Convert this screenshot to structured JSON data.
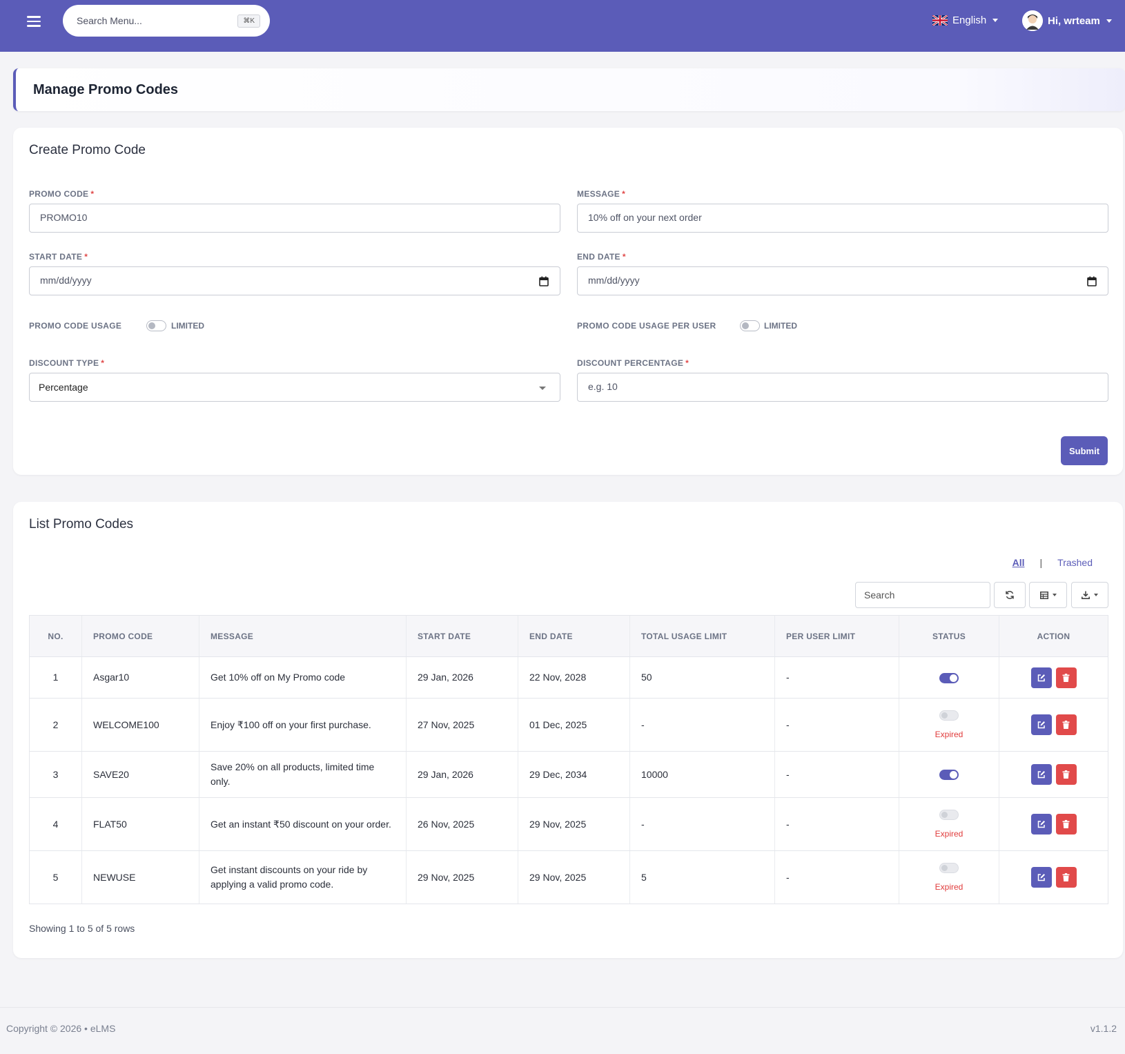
{
  "topbar": {
    "search_placeholder": "Search Menu...",
    "shortcut": "⌘K",
    "language": "English",
    "user_greeting": "Hi, wrteam"
  },
  "page": {
    "title": "Manage Promo Codes"
  },
  "create_form": {
    "title": "Create Promo Code",
    "promo_code": {
      "label": "PROMO CODE",
      "placeholder": "PROMO10"
    },
    "message": {
      "label": "MESSAGE",
      "placeholder": "10% off on your next order"
    },
    "start_date": {
      "label": "START DATE",
      "placeholder": "mm/dd/yyyy"
    },
    "end_date": {
      "label": "END DATE",
      "placeholder": "mm/dd/yyyy"
    },
    "usage": {
      "label": "PROMO CODE USAGE",
      "toggle_text": "LIMITED"
    },
    "usage_per_user": {
      "label": "PROMO CODE USAGE PER USER",
      "toggle_text": "LIMITED"
    },
    "discount_type": {
      "label": "DISCOUNT TYPE",
      "value": "Percentage"
    },
    "discount_percentage": {
      "label": "DISCOUNT PERCENTAGE",
      "placeholder": "e.g. 10"
    },
    "submit_label": "Submit"
  },
  "list": {
    "title": "List Promo Codes",
    "filter_all": "All",
    "filter_trashed": "Trashed",
    "search_placeholder": "Search",
    "columns": [
      "NO.",
      "PROMO CODE",
      "MESSAGE",
      "START DATE",
      "END DATE",
      "TOTAL USAGE LIMIT",
      "PER USER LIMIT",
      "STATUS",
      "ACTION"
    ],
    "rows": [
      {
        "no": "1",
        "code": "Asgar10",
        "message": "Get 10% off on My Promo code",
        "start": "29 Jan, 2026",
        "end": "22 Nov, 2028",
        "total_limit": "50",
        "per_user": "-",
        "status_on": true,
        "status_text": ""
      },
      {
        "no": "2",
        "code": "WELCOME100",
        "message": "Enjoy ₹100 off on your first purchase.",
        "start": "27 Nov, 2025",
        "end": "01 Dec, 2025",
        "total_limit": "-",
        "per_user": "-",
        "status_on": false,
        "status_text": "Expired"
      },
      {
        "no": "3",
        "code": "SAVE20",
        "message": "Save 20% on all products, limited time only.",
        "start": "29 Jan, 2026",
        "end": "29 Dec, 2034",
        "total_limit": "10000",
        "per_user": "-",
        "status_on": true,
        "status_text": ""
      },
      {
        "no": "4",
        "code": "FLAT50",
        "message": "Get an instant ₹50 discount on your order.",
        "start": "26 Nov, 2025",
        "end": "29 Nov, 2025",
        "total_limit": "-",
        "per_user": "-",
        "status_on": false,
        "status_text": "Expired"
      },
      {
        "no": "5",
        "code": "NEWUSE",
        "message": "Get instant discounts on your ride by applying a valid promo code.",
        "start": "29 Nov, 2025",
        "end": "29 Nov, 2025",
        "total_limit": "5",
        "per_user": "-",
        "status_on": false,
        "status_text": "Expired"
      }
    ],
    "showing": "Showing 1 to 5 of 5 rows"
  },
  "footer": {
    "copyright": "Copyright © 2026  •  eLMS",
    "version": "v1.1.2"
  },
  "colors": {
    "brand": "#5b5cb8",
    "danger": "#e14a4a",
    "expired": "#e03b3b"
  },
  "icons": [
    "hamburger-icon",
    "uk-flag-icon",
    "avatar-icon",
    "calendar-icon",
    "refresh-icon",
    "columns-icon",
    "download-icon",
    "edit-icon",
    "trash-icon"
  ]
}
